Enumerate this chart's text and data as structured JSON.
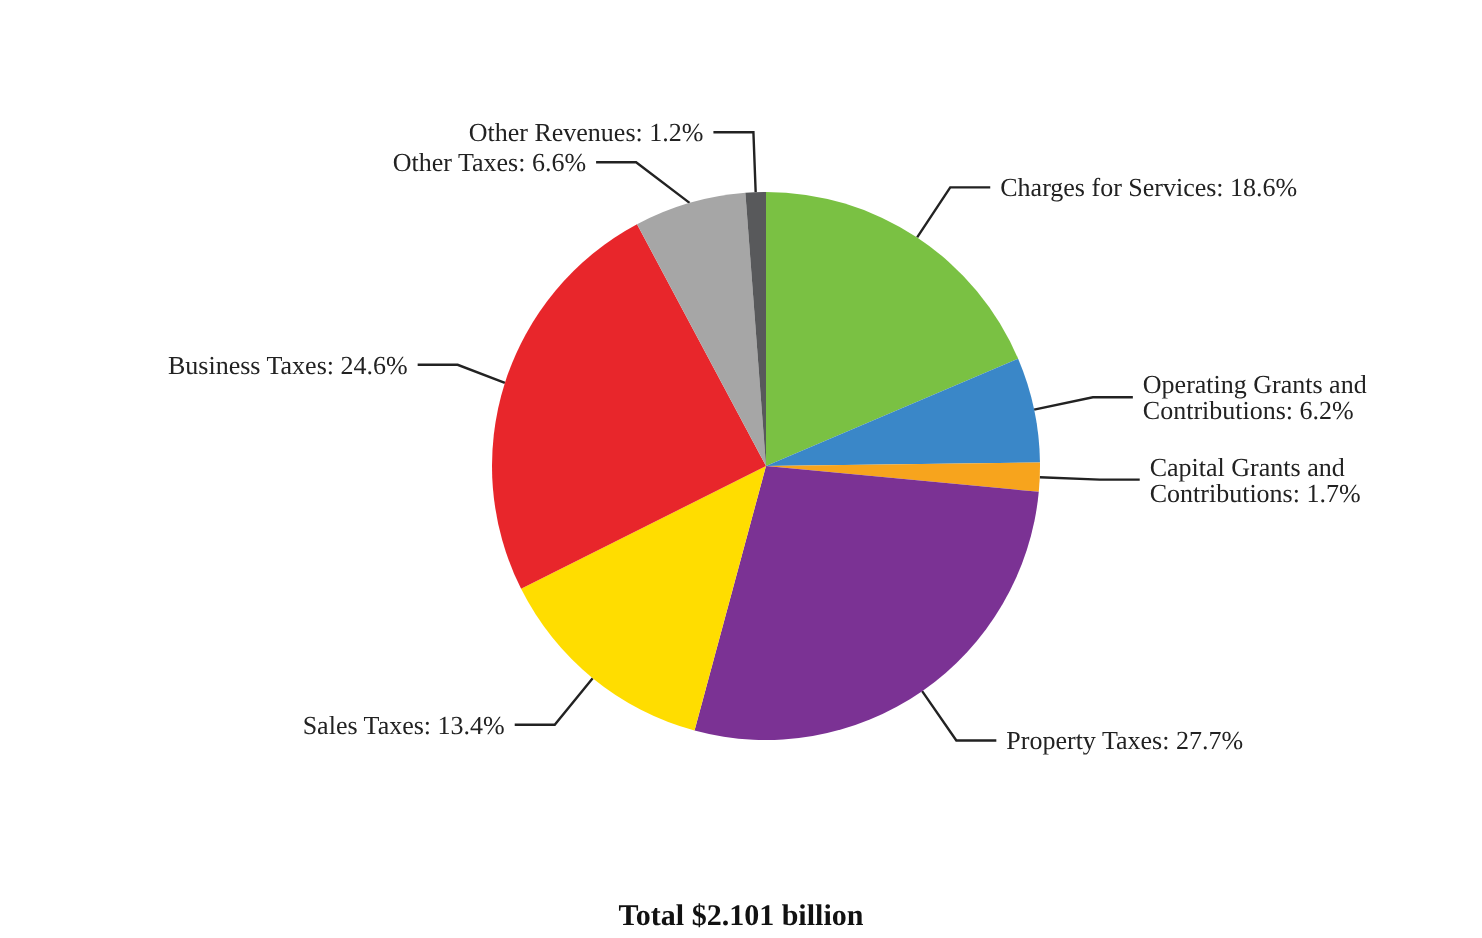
{
  "chart_data": {
    "type": "pie",
    "categories": [
      "Charges for Services",
      "Operating Grants and Contributions",
      "Capital Grants and Contributions",
      "Property Taxes",
      "Sales Taxes",
      "Business Taxes",
      "Other Taxes",
      "Other Revenues"
    ],
    "values": [
      18.6,
      6.2,
      1.7,
      27.7,
      13.4,
      24.6,
      6.6,
      1.2
    ],
    "value_labels": [
      "18.6%",
      "6.2%",
      "1.7%",
      "27.7%",
      "13.4%",
      "24.6%",
      "6.6%",
      "1.2%"
    ],
    "colors": [
      "#7ac143",
      "#3a87c8",
      "#f7a41d",
      "#7b3294",
      "#ffdd00",
      "#e8262b",
      "#a6a6a6",
      "#58595b"
    ],
    "annotations": [
      "Total $2.101 billion"
    ],
    "legend": false
  }
}
